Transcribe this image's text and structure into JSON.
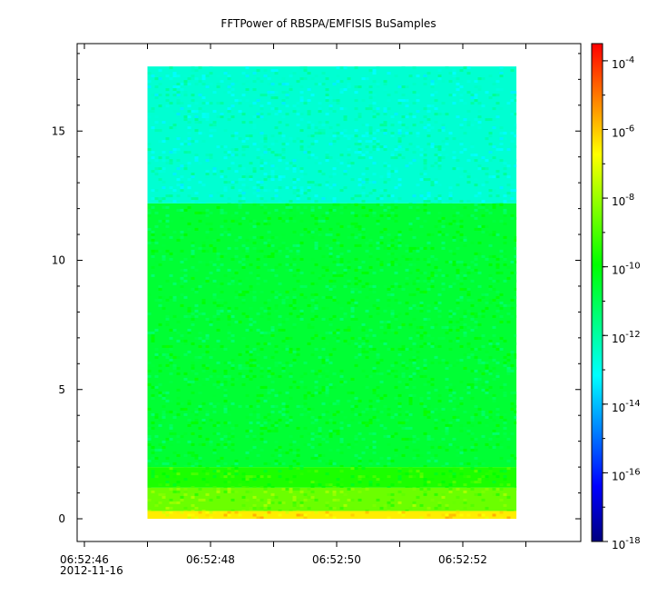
{
  "chart_data": {
    "type": "heatmap",
    "title": "FFTPower of RBSPA/EMFISIS  BuSamples",
    "xlabel": "",
    "ylabel": "",
    "x_tick_labels": [
      "06:52:46",
      "06:52:48",
      "06:52:50",
      "06:52:52"
    ],
    "x_date_label": "2012-11-16",
    "x_ticks_seconds": [
      46,
      48,
      50,
      52
    ],
    "xlim_seconds": [
      46,
      50.5
    ],
    "data_xlim_seconds": [
      47,
      52.85
    ],
    "y_ticks": [
      0,
      5,
      10,
      15
    ],
    "ylim": [
      -0.8,
      18.6
    ],
    "data_ylim": [
      0,
      17.5
    ],
    "colorbar": {
      "scale": "log",
      "range_exponent": [
        -18,
        -3.5
      ],
      "tick_exponents": [
        -4,
        -6,
        -8,
        -10,
        -12,
        -14,
        -16,
        -18
      ],
      "tick_base": "10",
      "colormap": [
        "#00007f",
        "#0000ff",
        "#0080ff",
        "#00ffff",
        "#00ff80",
        "#00ff00",
        "#80ff00",
        "#ffff00",
        "#ff8000",
        "#ff0000"
      ]
    },
    "bands": [
      {
        "y_from": 12.2,
        "y_to": 17.5,
        "log_power": -12.6
      },
      {
        "y_from": 2.0,
        "y_to": 12.2,
        "log_power": -10.6
      },
      {
        "y_from": 1.2,
        "y_to": 2.0,
        "log_power": -9.6
      },
      {
        "y_from": 0.3,
        "y_to": 1.2,
        "log_power": -8.6
      },
      {
        "y_from": 0.0,
        "y_to": 0.3,
        "log_power": -6.5
      }
    ]
  }
}
